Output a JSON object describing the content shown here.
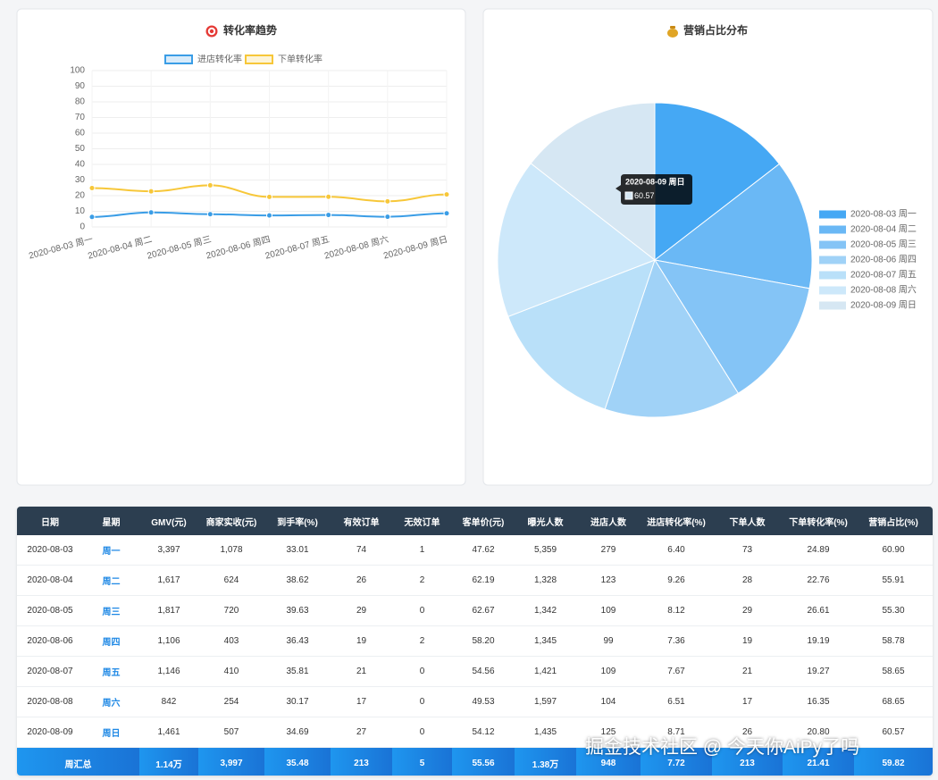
{
  "chart_data": [
    {
      "type": "line",
      "title": "转化率趋势",
      "categories": [
        "2020-08-03 周一",
        "2020-08-04 周二",
        "2020-08-05 周三",
        "2020-08-06 周四",
        "2020-08-07 周五",
        "2020-08-08 周六",
        "2020-08-09 周日"
      ],
      "series": [
        {
          "name": "进店转化率",
          "color": "#3a9de6",
          "values": [
            6.4,
            9.26,
            8.12,
            7.36,
            7.67,
            6.51,
            8.71
          ]
        },
        {
          "name": "下单转化率",
          "color": "#f7c739",
          "values": [
            24.89,
            22.76,
            26.61,
            19.19,
            19.27,
            16.35,
            20.8
          ]
        }
      ],
      "ylim": [
        0,
        100
      ],
      "yticks": [
        0,
        10,
        20,
        30,
        40,
        50,
        60,
        70,
        80,
        90,
        100
      ],
      "grid": true,
      "legend": "top"
    },
    {
      "type": "pie",
      "title": "营销占比分布",
      "categories": [
        "2020-08-03 周一",
        "2020-08-04 周二",
        "2020-08-05 周三",
        "2020-08-06 周四",
        "2020-08-07 周五",
        "2020-08-08 周六",
        "2020-08-09 周日"
      ],
      "values": [
        60.9,
        55.91,
        55.3,
        58.78,
        58.65,
        68.65,
        60.57
      ],
      "colors": [
        "#45a8f4",
        "#6ab8f5",
        "#84c4f6",
        "#a0d2f7",
        "#b9e0f9",
        "#cde8fa",
        "#d6e7f3"
      ],
      "legend": "right",
      "tooltip_index": 6
    }
  ],
  "table": {
    "columns": [
      "日期",
      "星期",
      "GMV(元)",
      "商家实收(元)",
      "到手率(%)",
      "有效订单",
      "无效订单",
      "客单价(元)",
      "曝光人数",
      "进店人数",
      "进店转化率(%)",
      "下单人数",
      "下单转化率(%)",
      "营销占比(%)"
    ],
    "rows": [
      [
        "2020-08-03",
        "周一",
        "3,397",
        "1,078",
        "33.01",
        "74",
        "1",
        "47.62",
        "5,359",
        "279",
        "6.40",
        "73",
        "24.89",
        "60.90"
      ],
      [
        "2020-08-04",
        "周二",
        "1,617",
        "624",
        "38.62",
        "26",
        "2",
        "62.19",
        "1,328",
        "123",
        "9.26",
        "28",
        "22.76",
        "55.91"
      ],
      [
        "2020-08-05",
        "周三",
        "1,817",
        "720",
        "39.63",
        "29",
        "0",
        "62.67",
        "1,342",
        "109",
        "8.12",
        "29",
        "26.61",
        "55.30"
      ],
      [
        "2020-08-06",
        "周四",
        "1,106",
        "403",
        "36.43",
        "19",
        "2",
        "58.20",
        "1,345",
        "99",
        "7.36",
        "19",
        "19.19",
        "58.78"
      ],
      [
        "2020-08-07",
        "周五",
        "1,146",
        "410",
        "35.81",
        "21",
        "0",
        "54.56",
        "1,421",
        "109",
        "7.67",
        "21",
        "19.27",
        "58.65"
      ],
      [
        "2020-08-08",
        "周六",
        "842",
        "254",
        "30.17",
        "17",
        "0",
        "49.53",
        "1,597",
        "104",
        "6.51",
        "17",
        "16.35",
        "68.65"
      ],
      [
        "2020-08-09",
        "周日",
        "1,461",
        "507",
        "34.69",
        "27",
        "0",
        "54.12",
        "1,435",
        "125",
        "8.71",
        "26",
        "20.80",
        "60.57"
      ]
    ],
    "total": [
      "周汇总",
      "1.14万",
      "3,997",
      "35.48",
      "213",
      "5",
      "55.56",
      "1.38万",
      "948",
      "7.72",
      "213",
      "21.41",
      "59.82"
    ]
  },
  "watermark": "掘金技术社区 @ 今天你AiPy了吗"
}
